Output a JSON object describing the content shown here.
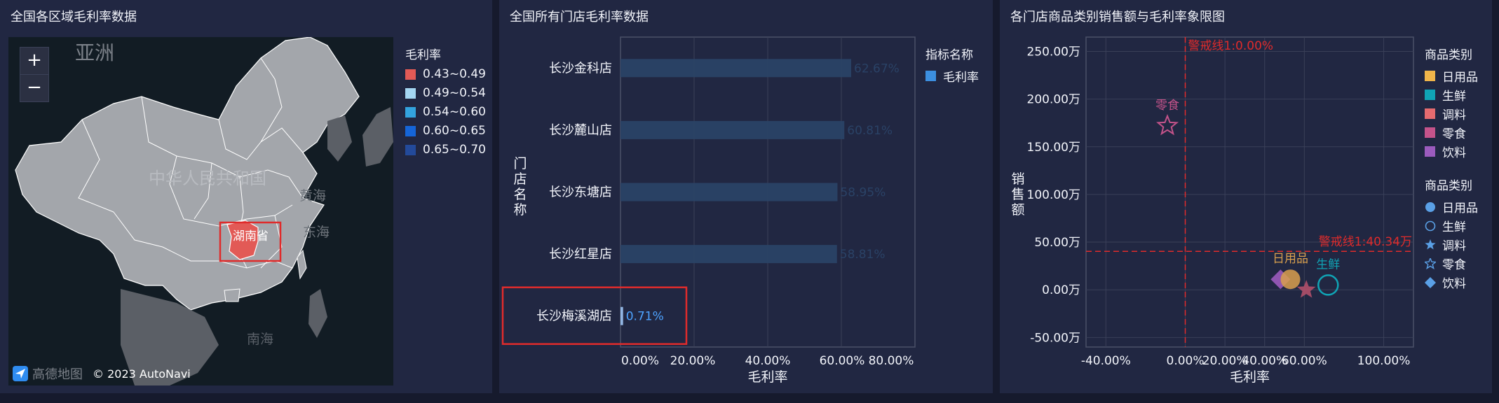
{
  "map_panel": {
    "title": "全国各区域毛利率数据",
    "legend_title": "毛利率",
    "legend": [
      {
        "label": "0.43~0.49",
        "color": "#e25a56"
      },
      {
        "label": "0.49~0.54",
        "color": "#a4d6f2"
      },
      {
        "label": "0.54~0.60",
        "color": "#33a3de"
      },
      {
        "label": "0.60~0.65",
        "color": "#1565d8"
      },
      {
        "label": "0.65~0.70",
        "color": "#234a9a"
      }
    ],
    "zoom_in": "+",
    "zoom_out": "−",
    "labels": {
      "asia": "亚洲",
      "china": "中华人民共和国",
      "yellow_sea": "黄海",
      "east_sea": "东海",
      "south_sea": "南海",
      "hunan": "湖南省"
    },
    "attribution_logo": "高德地图",
    "attribution_text": "© 2023 AutoNavi"
  },
  "bar_panel": {
    "title": "全国所有门店毛利率数据",
    "legend_title": "指标名称",
    "legend_item": "毛利率",
    "legend_color": "#3c8fe0",
    "chart_data": {
      "type": "bar",
      "orientation": "horizontal",
      "categories": [
        "长沙金科店",
        "长沙麓山店",
        "长沙东塘店",
        "长沙红星店",
        "长沙梅溪湖店"
      ],
      "series": [
        {
          "name": "毛利率",
          "values": [
            62.67,
            60.81,
            58.95,
            58.81,
            0.71
          ]
        }
      ],
      "data_labels": [
        "62.67%",
        "60.81%",
        "58.95%",
        "58.81%",
        "0.71%"
      ],
      "xlabel": "毛利率",
      "ylabel": "门店名称",
      "xlim": [
        0,
        80
      ],
      "ticks": [
        "0.00%",
        "20.00%",
        "40.00%",
        "60.00%",
        "80.00%"
      ],
      "highlighted_category": "长沙梅溪湖店"
    }
  },
  "scatter_panel": {
    "title": "各门店商品类别销售额与毛利率象限图",
    "legend_color_title": "商品类别",
    "legend_colors": [
      {
        "label": "日用品",
        "color": "#f0b54a"
      },
      {
        "label": "生鲜",
        "color": "#10a4b5"
      },
      {
        "label": "调料",
        "color": "#e56b6f"
      },
      {
        "label": "零食",
        "color": "#c4538a"
      },
      {
        "label": "饮料",
        "color": "#9b5bbd"
      }
    ],
    "legend_shape_title": "商品类别",
    "legend_shapes": [
      {
        "label": "日用品",
        "shape": "circle-icon"
      },
      {
        "label": "生鲜",
        "shape": "ring-icon"
      },
      {
        "label": "调料",
        "shape": "star-icon"
      },
      {
        "label": "零食",
        "shape": "star-outline-icon"
      },
      {
        "label": "饮料",
        "shape": "diamond-icon"
      }
    ],
    "chart_data": {
      "type": "scatter",
      "xlabel": "毛利率",
      "ylabel": "销售额",
      "xlim": [
        -50,
        115
      ],
      "ylim": [
        -60,
        265
      ],
      "x_ticks": [
        {
          "value": -40,
          "label": "-40.00%"
        },
        {
          "value": 0,
          "label": "0.00%"
        },
        {
          "value": 20,
          "label": "20.00%"
        },
        {
          "value": 40,
          "label": "40.00%"
        },
        {
          "value": 60,
          "label": "60.00%"
        },
        {
          "value": 100,
          "label": "100.00%"
        }
      ],
      "y_ticks": [
        {
          "value": 250,
          "label": "250.00万"
        },
        {
          "value": 200,
          "label": "200.00万"
        },
        {
          "value": 150,
          "label": "150.00万"
        },
        {
          "value": 100,
          "label": "100.00万"
        },
        {
          "value": 50,
          "label": "50.00万"
        },
        {
          "value": 0,
          "label": "0.00万"
        },
        {
          "value": -50,
          "label": "-50.00万"
        }
      ],
      "points": [
        {
          "category": "零食",
          "x": -9,
          "y": 172,
          "shape": "star-outline",
          "color": "#c4538a",
          "label": "零食"
        },
        {
          "category": "饮料",
          "x": 48,
          "y": 11,
          "shape": "diamond",
          "color": "#9b5bbd",
          "label": ""
        },
        {
          "category": "日用品",
          "x": 53,
          "y": 11,
          "shape": "circle",
          "color": "#d9a04e",
          "label": "日用品"
        },
        {
          "category": "调料",
          "x": 61,
          "y": 0,
          "shape": "star",
          "color": "#b0506a",
          "label": ""
        },
        {
          "category": "生鲜",
          "x": 72,
          "y": 5,
          "shape": "ring",
          "color": "#10a4b5",
          "label": "生鲜"
        }
      ],
      "warning_lines": [
        {
          "axis": "x",
          "value": 0,
          "label": "警戒线1:0.00%"
        },
        {
          "axis": "y",
          "value": 40.34,
          "label": "警戒线1:40.34万"
        }
      ]
    }
  }
}
